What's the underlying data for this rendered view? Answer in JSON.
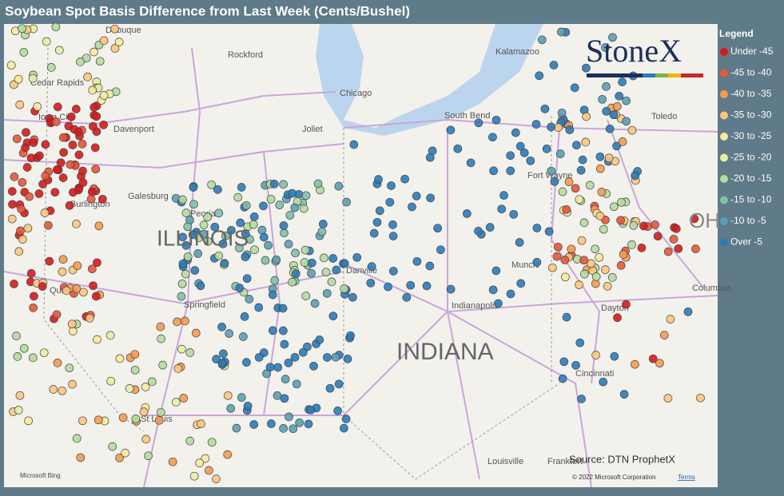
{
  "header": {
    "title": "Soybean Spot Basis Difference from Last Week (Cents/Bushel)"
  },
  "legend": {
    "title": "Legend",
    "items": [
      {
        "label": "Under -45",
        "color": "#d7191c"
      },
      {
        "label": "-45 to -40",
        "color": "#e8553a"
      },
      {
        "label": "-40 to -35",
        "color": "#f59a4f"
      },
      {
        "label": "-35 to -30",
        "color": "#fdc57f"
      },
      {
        "label": "-30 to -25",
        "color": "#fbe99a"
      },
      {
        "label": "-25 to -20",
        "color": "#e6f0a5"
      },
      {
        "label": "-20 to -15",
        "color": "#b3dca0"
      },
      {
        "label": "-15 to -10",
        "color": "#7fbfa8"
      },
      {
        "label": "-10 to -5",
        "color": "#5aa0b5"
      },
      {
        "label": "Over -5",
        "color": "#2b7bba"
      }
    ]
  },
  "map": {
    "places": [
      "Dubuque",
      "Rockford",
      "Kalamazoo",
      "Cedar Rapids",
      "Iowa City",
      "Davenport",
      "Chicago",
      "South Bend",
      "Toledo",
      "Joliet",
      "Galesburg",
      "Burlington",
      "Fort Wayne",
      "Peoria",
      "Quincy",
      "Danville",
      "Muncie",
      "Springfield",
      "Indianapolis",
      "Dayton",
      "Columbus",
      "Cincinnati",
      "St Louis",
      "Louisville",
      "Frankfort"
    ],
    "states": [
      "ILLINOIS",
      "INDIANA",
      "OH"
    ],
    "logo": "StoneX",
    "source": "Source: DTN ProphetX",
    "attribution": "Microsoft Bing",
    "copyright": "© 2022 Microsoft Corporation",
    "terms": "Terms"
  }
}
